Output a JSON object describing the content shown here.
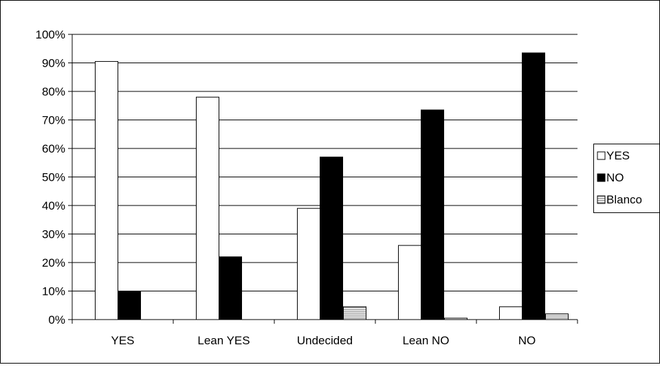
{
  "chart_data": {
    "type": "bar",
    "title": "",
    "xlabel": "",
    "ylabel": "",
    "categories": [
      "YES",
      "Lean YES",
      "Undecided",
      "Lean NO",
      "NO"
    ],
    "series": [
      {
        "name": "YES",
        "values": [
          90.5,
          78,
          39,
          26,
          4.5
        ],
        "color": "#ffffff"
      },
      {
        "name": "NO",
        "values": [
          10,
          22,
          57,
          73.5,
          93.5
        ],
        "color": "#000000"
      },
      {
        "name": "Blanco",
        "values": [
          0,
          0,
          4.5,
          0.5,
          2
        ],
        "color": "#c8c8c8",
        "pattern": "horizontal-stripes"
      }
    ],
    "ylim": [
      0,
      100
    ],
    "yticks": [
      "0%",
      "10%",
      "20%",
      "30%",
      "40%",
      "50%",
      "60%",
      "70%",
      "80%",
      "90%",
      "100%"
    ],
    "grid": true,
    "legend_position": "right"
  }
}
